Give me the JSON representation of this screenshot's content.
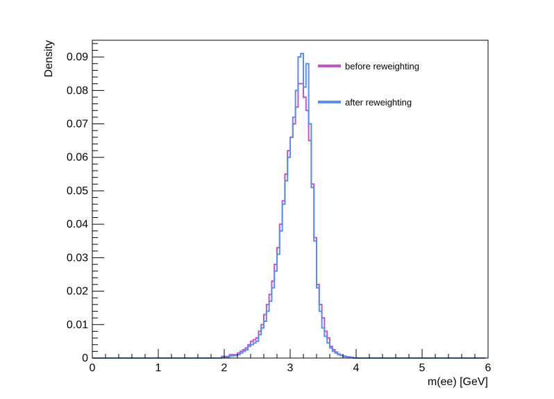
{
  "chart_data": {
    "type": "line",
    "xlabel": "m(ee) [GeV]",
    "ylabel": "Density",
    "xlim": [
      0,
      6
    ],
    "ylim": [
      0,
      0.095
    ],
    "x_ticks": [
      "0",
      "1",
      "2",
      "3",
      "4",
      "5",
      "6"
    ],
    "y_ticks": [
      "0",
      "0.01",
      "0.02",
      "0.03",
      "0.04",
      "0.05",
      "0.06",
      "0.07",
      "0.08",
      "0.09"
    ],
    "grid": false,
    "legend_position": "top-right",
    "bin_edges_start": 0,
    "bin_width": 0.04,
    "series": [
      {
        "name": "before reweighting",
        "color": "#c355c9",
        "values": [
          0,
          0,
          0,
          0,
          0,
          0,
          0,
          0,
          0,
          0,
          0,
          0,
          0,
          0,
          0,
          0,
          0,
          0,
          0,
          0,
          0,
          0,
          0,
          0,
          0,
          0,
          0,
          0,
          0,
          0,
          0,
          0,
          0,
          0,
          0,
          0,
          0,
          0,
          0,
          0,
          0,
          0,
          0,
          0,
          0,
          0,
          0,
          0,
          0,
          0.0005,
          0.0005,
          0.0005,
          0.001,
          0.001,
          0.001,
          0.0015,
          0.002,
          0.0025,
          0.003,
          0.004,
          0.005,
          0.0055,
          0.006,
          0.008,
          0.01,
          0.013,
          0.016,
          0.019,
          0.023,
          0.028,
          0.033,
          0.04,
          0.047,
          0.055,
          0.062,
          0.066,
          0.07,
          0.075,
          0.082,
          0.082,
          0.078,
          0.074,
          0.065,
          0.052,
          0.036,
          0.022,
          0.016,
          0.012,
          0.008,
          0.006,
          0.0035,
          0.0025,
          0.0018,
          0.0012,
          0.0008,
          0.0005,
          0.0004,
          0.0003,
          0.0002,
          0,
          0,
          0,
          0,
          0,
          0,
          0,
          0,
          0,
          0,
          0,
          0,
          0,
          0,
          0,
          0,
          0,
          0,
          0,
          0,
          0,
          0,
          0,
          0,
          0,
          0,
          0,
          0,
          0,
          0,
          0,
          0,
          0,
          0,
          0,
          0,
          0,
          0,
          0,
          0,
          0,
          0,
          0,
          0,
          0,
          0,
          0,
          0,
          0,
          0
        ]
      },
      {
        "name": "after reweighting",
        "color": "#5a8ee8",
        "values": [
          0,
          0,
          0,
          0,
          0,
          0,
          0,
          0,
          0,
          0,
          0,
          0,
          0,
          0,
          0,
          0,
          0,
          0,
          0,
          0,
          0,
          0,
          0,
          0,
          0,
          0,
          0,
          0,
          0,
          0,
          0,
          0,
          0,
          0,
          0,
          0,
          0,
          0,
          0,
          0,
          0,
          0,
          0,
          0,
          0,
          0,
          0,
          0,
          0,
          0.0003,
          0.0003,
          0.0003,
          0.0006,
          0.0007,
          0.0008,
          0.001,
          0.0015,
          0.002,
          0.0025,
          0.0035,
          0.004,
          0.0045,
          0.005,
          0.007,
          0.009,
          0.011,
          0.014,
          0.017,
          0.021,
          0.026,
          0.031,
          0.038,
          0.046,
          0.053,
          0.06,
          0.066,
          0.072,
          0.08,
          0.09,
          0.091,
          0.081,
          0.088,
          0.07,
          0.051,
          0.035,
          0.021,
          0.014,
          0.009,
          0.0065,
          0.0045,
          0.003,
          0.002,
          0.0015,
          0.001,
          0.0008,
          0.0006,
          0.0004,
          0.0003,
          0.0002,
          0,
          0,
          0,
          0,
          0,
          0,
          0,
          0,
          0,
          0,
          0,
          0,
          0,
          0,
          0,
          0,
          0,
          0,
          0,
          0,
          0,
          0,
          0,
          0,
          0,
          0,
          0,
          0,
          0,
          0,
          0,
          0,
          0,
          0,
          0,
          0,
          0,
          0,
          0,
          0,
          0,
          0,
          0,
          0,
          0,
          0,
          0,
          0,
          0,
          0
        ]
      }
    ]
  }
}
